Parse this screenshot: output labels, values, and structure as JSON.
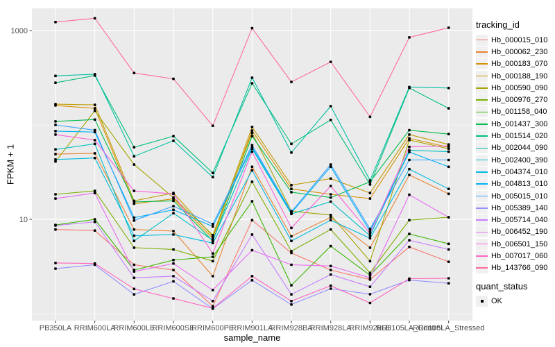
{
  "figure": {
    "background": "#ffffff",
    "panel_background": "#EBEBEB",
    "grid_color": "#FFFFFF",
    "tick_text_color": "#4D4D4D",
    "axis_title_color": "#000000",
    "point_color": "#000000"
  },
  "legend": {
    "tracking_title": "tracking_id",
    "quant_title": "quant_status",
    "quant_items": [
      "OK"
    ]
  },
  "chart_data": {
    "type": "line",
    "title": "",
    "xlabel": "sample_name",
    "ylabel": "FPKM + 1",
    "y_scale": "log10",
    "y_tick_labels": [
      "1000",
      "10"
    ],
    "y_tick_values": [
      1000,
      10
    ],
    "y_minor_values": [
      100,
      1
    ],
    "ylim_log": [
      0.77,
      1780
    ],
    "grid": true,
    "legend_position": "right",
    "point_shape": "square",
    "categories": [
      "PB350LA",
      "RRIM600LA",
      "RRIM600LE",
      "RRIM600SE",
      "RRIM600PE",
      "RRIM901LA",
      "RRIM928BA",
      "RRIM928LA",
      "RRIM928LE",
      "RRII105LA_Control",
      "RRII105LA_Stressed"
    ],
    "series": [
      {
        "name": "Hb_000015_010",
        "color": "#F8766D",
        "values": [
          7.8,
          7.6,
          3.3,
          2.9,
          1.2,
          9.8,
          4.4,
          2.9,
          2.3,
          5.1,
          3.55
        ]
      },
      {
        "name": "Hb_000062_230",
        "color": "#EA8331",
        "values": [
          49,
          50,
          7.8,
          7.5,
          2.5,
          36,
          6.6,
          10.5,
          5.0,
          29.5,
          18.6
        ]
      },
      {
        "name": "Hb_000183_070",
        "color": "#D89000",
        "values": [
          161,
          150,
          14.6,
          16.5,
          6.3,
          87,
          21,
          18.4,
          16.6,
          72,
          58
        ]
      },
      {
        "name": "Hb_000188_190",
        "color": "#C09B00",
        "values": [
          166,
          163,
          15.7,
          19,
          6.6,
          95,
          23,
          27,
          19,
          79,
          62
        ]
      },
      {
        "name": "Hb_000590_090",
        "color": "#A3A500",
        "values": [
          41,
          141,
          38,
          17,
          6.8,
          82,
          12.2,
          11.1,
          3.6,
          69,
          56
        ]
      },
      {
        "name": "Hb_000976_270",
        "color": "#7CAE00",
        "values": [
          18.4,
          20,
          5.0,
          4.8,
          3.6,
          25,
          4.6,
          7.8,
          2.7,
          9.8,
          10.5
        ]
      },
      {
        "name": "Hb_001158_040",
        "color": "#39B600",
        "values": [
          8.7,
          10,
          2.9,
          3.7,
          4.0,
          15.5,
          2.0,
          5.2,
          2.55,
          7.0,
          5.5
        ]
      },
      {
        "name": "Hb_001437_300",
        "color": "#00BB4E",
        "values": [
          109,
          114,
          15.3,
          15.7,
          5.9,
          76,
          19.4,
          17,
          25,
          88,
          80
        ]
      },
      {
        "name": "Hb_001514_020",
        "color": "#00BF7D",
        "values": [
          280,
          334,
          58,
          76,
          31,
          276,
          63,
          113,
          23.4,
          246,
          150
        ]
      },
      {
        "name": "Hb_002044_090",
        "color": "#00C1A3",
        "values": [
          331,
          345,
          46.5,
          68,
          28,
          316,
          51,
          158,
          25.8,
          252,
          246
        ]
      },
      {
        "name": "Hb_002400_390",
        "color": "#00BFC4",
        "values": [
          55,
          63,
          5.9,
          11.6,
          6.0,
          56,
          11.4,
          15.4,
          6.7,
          54,
          52
        ]
      },
      {
        "name": "Hb_004374_010",
        "color": "#00BAE0",
        "values": [
          43,
          44.6,
          6.7,
          6.9,
          5.6,
          33,
          5.9,
          9.8,
          6.3,
          34,
          21
        ]
      },
      {
        "name": "Hb_004813_010",
        "color": "#00B0F6",
        "values": [
          86,
          84,
          10.4,
          12.6,
          8.4,
          58,
          11.7,
          36,
          7.45,
          51.6,
          36
        ]
      },
      {
        "name": "Hb_005015_010",
        "color": "#35A2FF",
        "values": [
          100,
          88,
          9.7,
          13.8,
          8.9,
          61,
          12.0,
          38,
          7.9,
          42.5,
          42.5
        ]
      },
      {
        "name": "Hb_005389_140",
        "color": "#9590FF",
        "values": [
          3.0,
          3.3,
          1.6,
          2.2,
          1.13,
          2.26,
          1.25,
          1.84,
          1.61,
          2.27,
          2.1
        ]
      },
      {
        "name": "Hb_005714_040",
        "color": "#C77CFF",
        "values": [
          8.6,
          9.4,
          2.4,
          2.5,
          1.36,
          6.9,
          1.6,
          2.6,
          1.93,
          6.0,
          4.8
        ]
      },
      {
        "name": "Hb_006452_190",
        "color": "#E76BF3",
        "values": [
          16.6,
          19,
          2.8,
          3.4,
          1.78,
          4.7,
          3.3,
          3.2,
          2.4,
          18.2,
          10.5
        ]
      },
      {
        "name": "Hb_006501_150",
        "color": "#FA62DB",
        "values": [
          79,
          69,
          20,
          18.6,
          4.35,
          52,
          8.1,
          22.5,
          7.1,
          58.5,
          60
        ]
      },
      {
        "name": "Hb_007017_060",
        "color": "#FF62BC",
        "values": [
          3.45,
          3.4,
          1.83,
          1.45,
          1.14,
          2.5,
          1.36,
          1.98,
          1.3,
          2.35,
          2.37
        ]
      },
      {
        "name": "Hb_143766_090",
        "color": "#FF6A98",
        "values": [
          1230,
          1350,
          355,
          308,
          98,
          1060,
          285,
          465,
          122,
          845,
          1070
        ]
      }
    ]
  }
}
